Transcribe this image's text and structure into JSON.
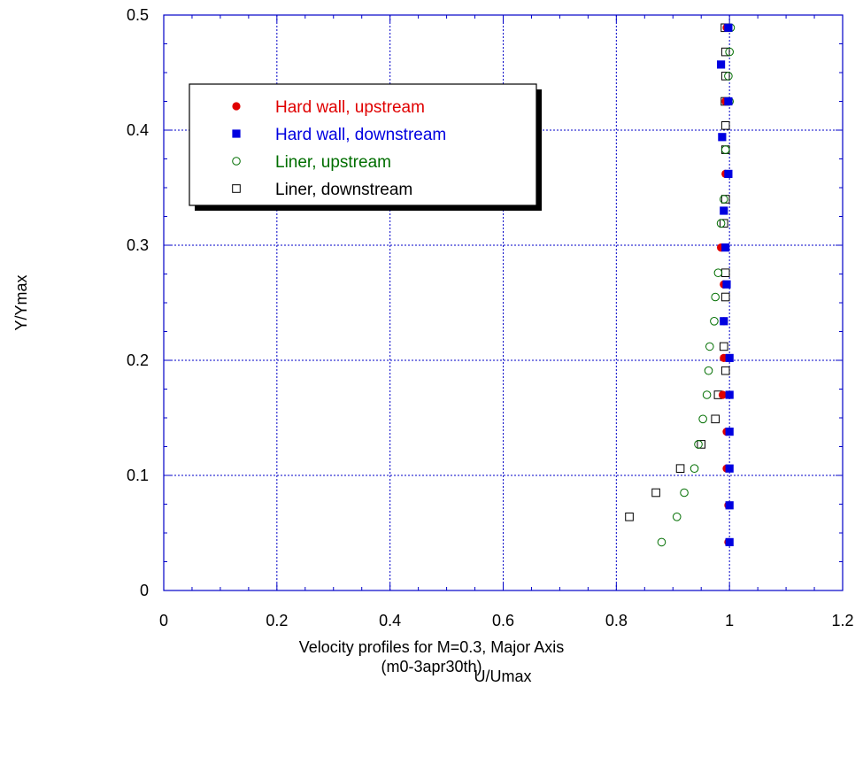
{
  "chart_data": {
    "type": "scatter",
    "xlabel": "U/Umax",
    "ylabel": "Y/Ymax",
    "xlim": [
      0,
      1.2
    ],
    "ylim": [
      0,
      0.5
    ],
    "xticks": [
      "0",
      "0.2",
      "0.4",
      "0.6",
      "0.8",
      "1",
      "1.2"
    ],
    "yticks": [
      "0",
      "0.1",
      "0.2",
      "0.3",
      "0.4",
      "0.5"
    ],
    "grid": true,
    "legend_position": "top-left",
    "series": [
      {
        "name": "Hard wall, upstream",
        "marker": "filled-circle",
        "color": "#e00000",
        "points": [
          [
            0.995,
            0.489
          ],
          [
            0.993,
            0.425
          ],
          [
            0.993,
            0.362
          ],
          [
            0.985,
            0.298
          ],
          [
            0.99,
            0.266
          ],
          [
            0.99,
            0.234
          ],
          [
            0.99,
            0.202
          ],
          [
            0.988,
            0.17
          ],
          [
            0.995,
            0.138
          ],
          [
            0.995,
            0.106
          ],
          [
            0.998,
            0.074
          ],
          [
            0.998,
            0.042
          ]
        ]
      },
      {
        "name": "Hard wall, downstream",
        "marker": "filled-square",
        "color": "#0000e0",
        "points": [
          [
            0.998,
            0.489
          ],
          [
            0.985,
            0.457
          ],
          [
            0.998,
            0.425
          ],
          [
            0.987,
            0.394
          ],
          [
            0.998,
            0.362
          ],
          [
            0.99,
            0.33
          ],
          [
            0.993,
            0.298
          ],
          [
            0.995,
            0.266
          ],
          [
            0.99,
            0.234
          ],
          [
            1.0,
            0.202
          ],
          [
            1.0,
            0.17
          ],
          [
            1.0,
            0.138
          ],
          [
            1.0,
            0.106
          ],
          [
            1.0,
            0.074
          ],
          [
            1.0,
            0.042
          ]
        ]
      },
      {
        "name": "Liner, upstream",
        "marker": "open-circle",
        "color": "#006e00",
        "points": [
          [
            1.002,
            0.489
          ],
          [
            1.0,
            0.468
          ],
          [
            0.998,
            0.447
          ],
          [
            1.0,
            0.425
          ],
          [
            0.993,
            0.383
          ],
          [
            0.99,
            0.34
          ],
          [
            0.985,
            0.319
          ],
          [
            0.98,
            0.276
          ],
          [
            0.975,
            0.255
          ],
          [
            0.973,
            0.234
          ],
          [
            0.965,
            0.212
          ],
          [
            0.963,
            0.191
          ],
          [
            0.96,
            0.17
          ],
          [
            0.953,
            0.149
          ],
          [
            0.945,
            0.127
          ],
          [
            0.938,
            0.106
          ],
          [
            0.92,
            0.085
          ],
          [
            0.907,
            0.064
          ],
          [
            0.88,
            0.042
          ]
        ]
      },
      {
        "name": "Liner, downstream",
        "marker": "open-square",
        "color": "#000000",
        "points": [
          [
            0.992,
            0.489
          ],
          [
            0.993,
            0.468
          ],
          [
            0.993,
            0.447
          ],
          [
            0.992,
            0.425
          ],
          [
            0.993,
            0.404
          ],
          [
            0.993,
            0.383
          ],
          [
            0.993,
            0.34
          ],
          [
            0.99,
            0.319
          ],
          [
            0.993,
            0.276
          ],
          [
            0.993,
            0.255
          ],
          [
            0.99,
            0.212
          ],
          [
            0.993,
            0.191
          ],
          [
            0.98,
            0.17
          ],
          [
            0.975,
            0.149
          ],
          [
            0.95,
            0.127
          ],
          [
            0.913,
            0.106
          ],
          [
            0.87,
            0.085
          ],
          [
            0.823,
            0.064
          ]
        ]
      }
    ]
  },
  "caption": {
    "line1": "Velocity profiles for M=0.3, Major Axis",
    "line2": "(m0-3apr30th)"
  }
}
